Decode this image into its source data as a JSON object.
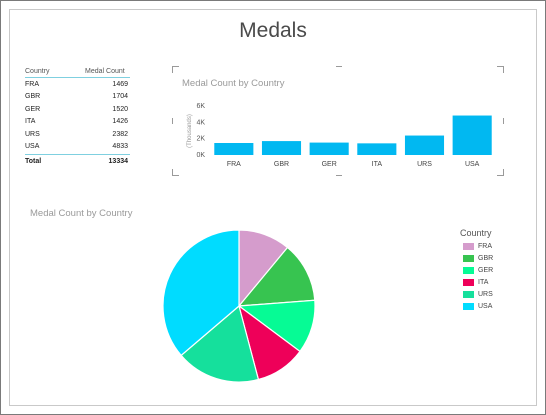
{
  "report_title": "Medals",
  "table": {
    "headers": [
      "Country",
      "Medal Count"
    ],
    "rows": [
      {
        "country": "FRA",
        "count": "1469"
      },
      {
        "country": "GBR",
        "count": "1704"
      },
      {
        "country": "GER",
        "count": "1520"
      },
      {
        "country": "ITA",
        "count": "1426"
      },
      {
        "country": "URS",
        "count": "2382"
      },
      {
        "country": "USA",
        "count": "4833"
      }
    ],
    "total_label": "Total",
    "total_value": "13334"
  },
  "chart_data": [
    {
      "type": "bar",
      "title": "Medal Count by Country",
      "ylabel": "(Thousands)",
      "categories": [
        "FRA",
        "GBR",
        "GER",
        "ITA",
        "URS",
        "USA"
      ],
      "values": [
        1469,
        1704,
        1520,
        1426,
        2382,
        4833
      ],
      "ylim": [
        0,
        6000
      ],
      "yticks": [
        "0K",
        "2K",
        "4K",
        "6K"
      ],
      "bar_color": "#01b8f1",
      "grid": false
    },
    {
      "type": "pie",
      "title": "Medal Count by Country",
      "legend_title": "Country",
      "legend_position": "right",
      "labels": [
        "FRA",
        "GBR",
        "GER",
        "ITA",
        "URS",
        "USA"
      ],
      "values": [
        1469,
        1704,
        1520,
        1426,
        2382,
        4833
      ],
      "colors": [
        "#d59ccc",
        "#37c450",
        "#06fb95",
        "#ee0059",
        "#15e09c",
        "#00dcff"
      ]
    }
  ]
}
